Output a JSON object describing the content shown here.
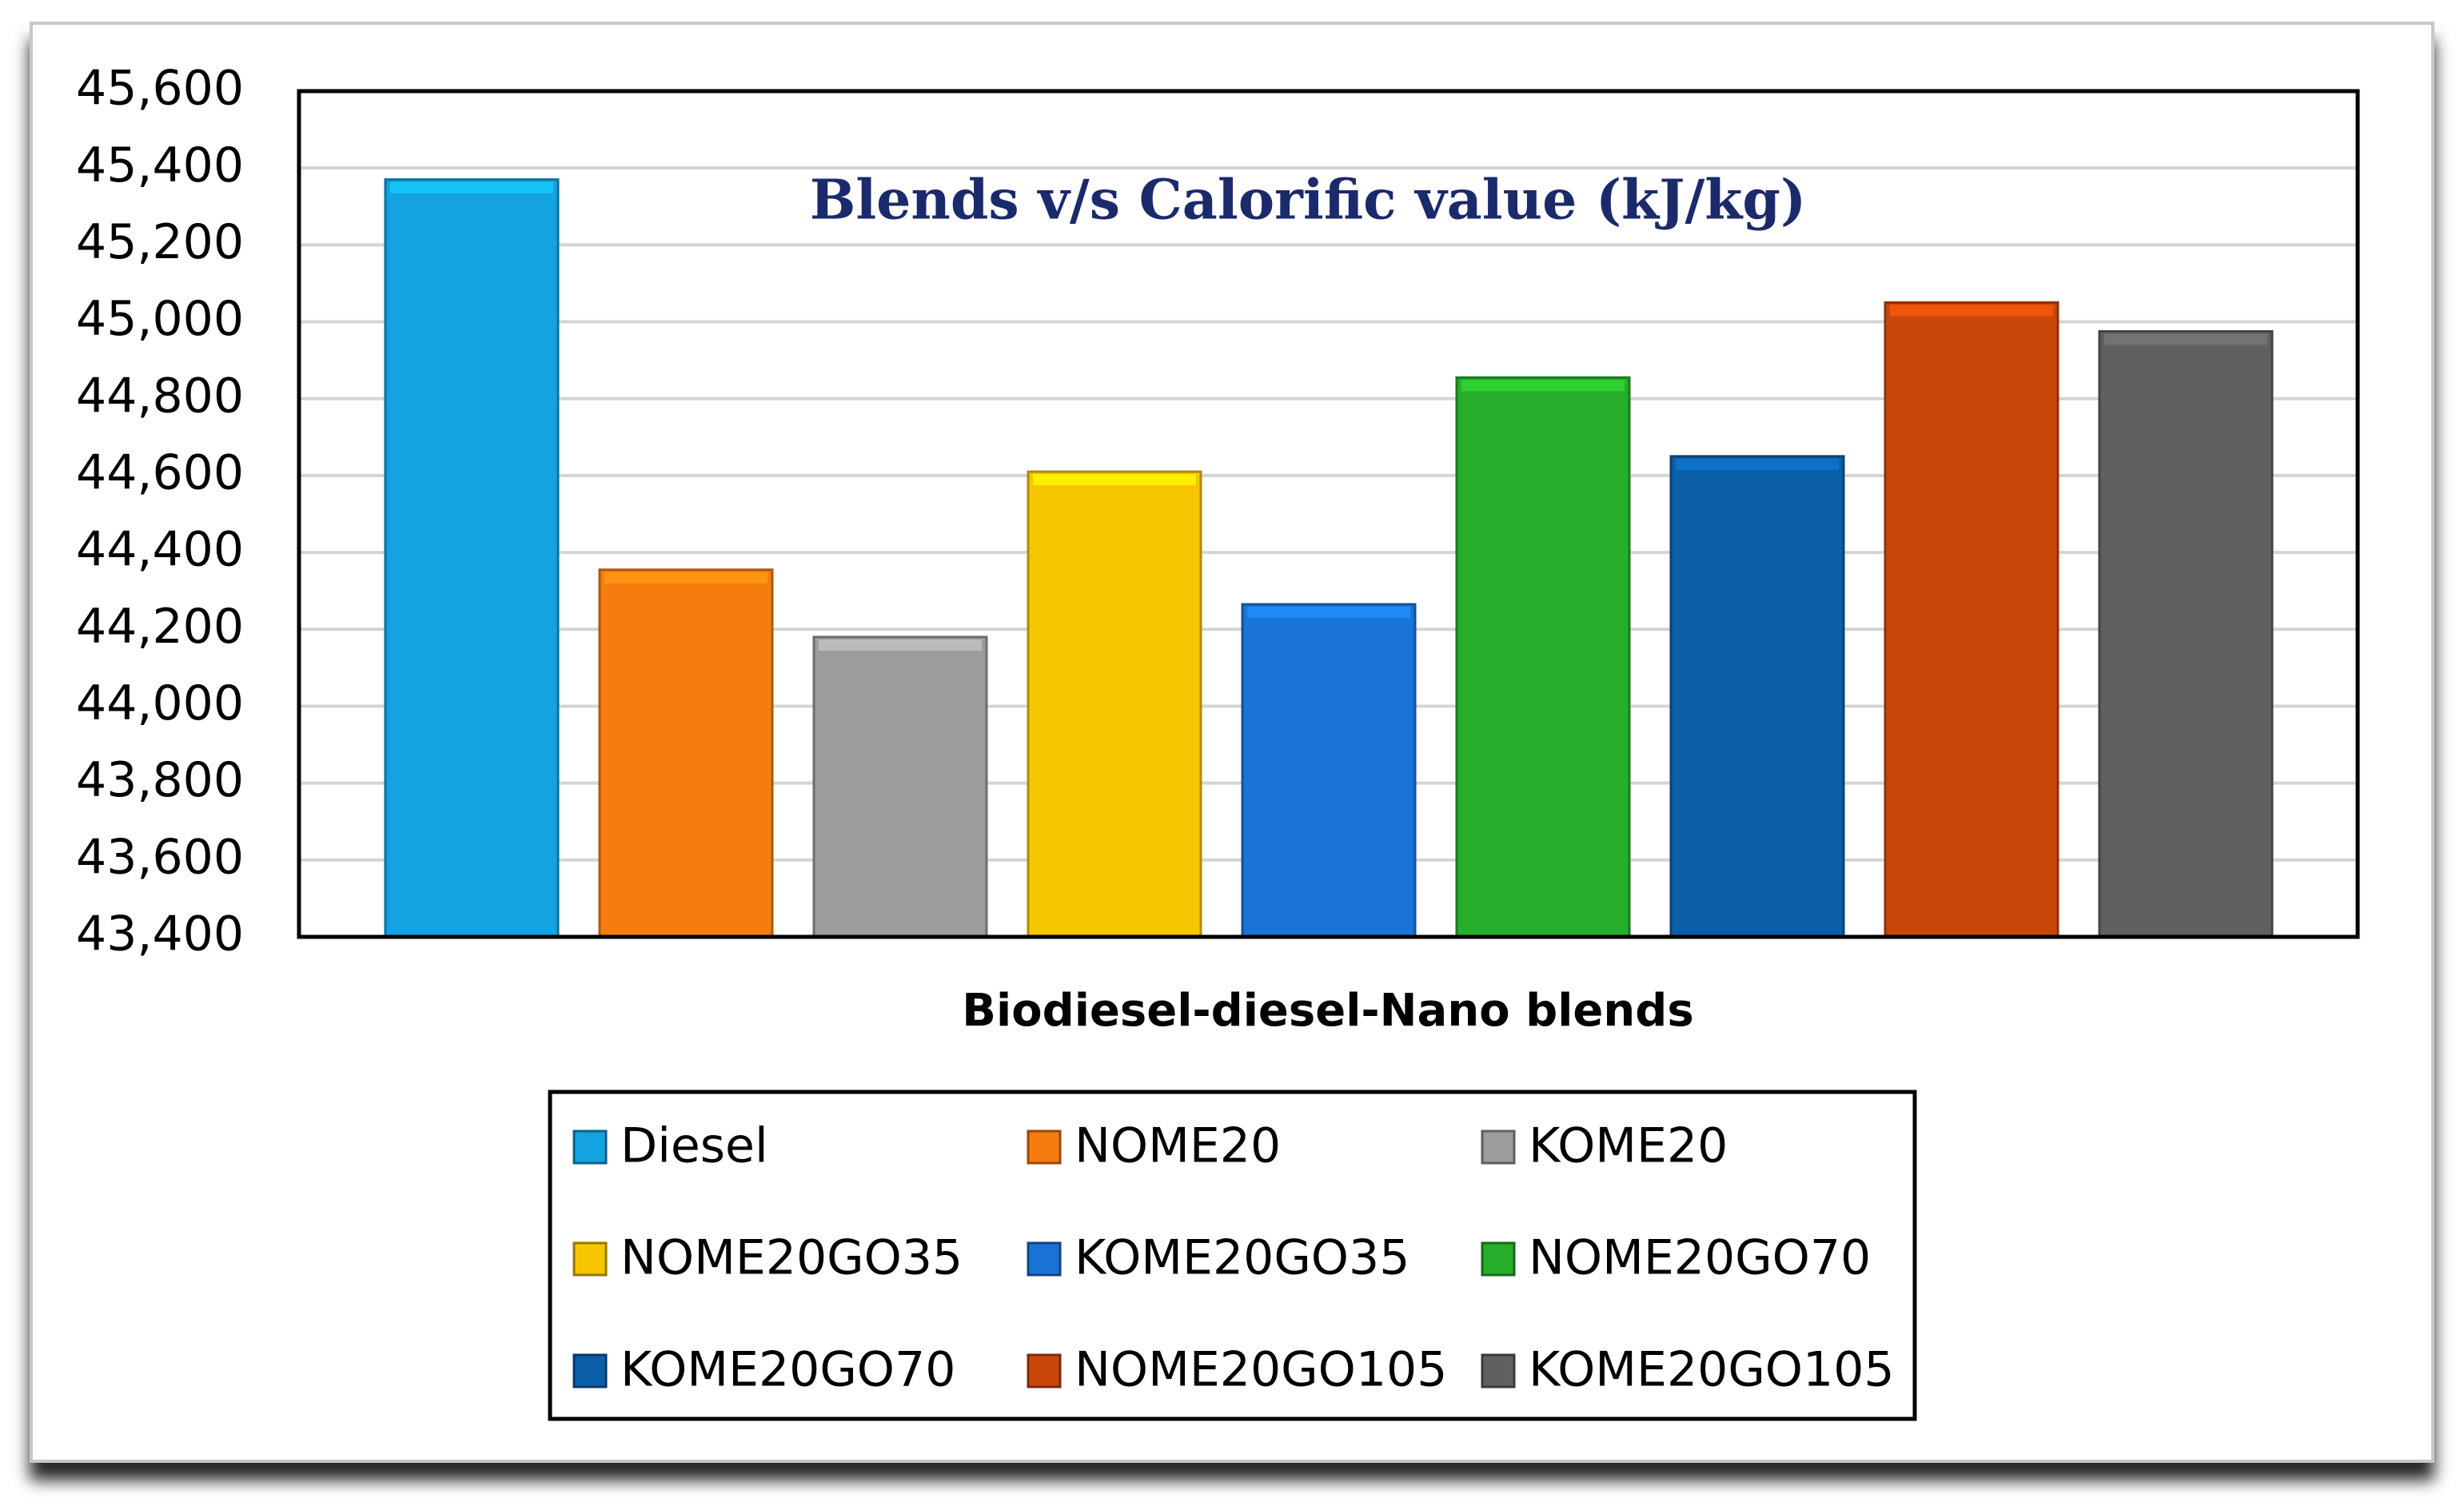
{
  "chart_data": {
    "type": "bar",
    "title": "Blends v/s Calorific value (kJ/kg)",
    "x_label": "Biodiesel-diesel-Nano blends",
    "categories": [
      null
    ],
    "series": [
      {
        "name": "Diesel",
        "color": "#12a3e0",
        "values": [
          45370
        ]
      },
      {
        "name": "NOME20",
        "color": "#f57c0f",
        "values": [
          44355
        ]
      },
      {
        "name": "KOME20",
        "color": "#9c9c9c",
        "values": [
          44180
        ]
      },
      {
        "name": "NOME20GO35",
        "color": "#f7c600",
        "values": [
          44610
        ]
      },
      {
        "name": "KOME20GO35",
        "color": "#1a73d6",
        "values": [
          44265
        ]
      },
      {
        "name": "NOME20GO70",
        "color": "#27ae2a",
        "values": [
          44855
        ]
      },
      {
        "name": "KOME20GO70",
        "color": "#0b5ea8",
        "values": [
          44650
        ]
      },
      {
        "name": "NOME20GO105",
        "color": "#c9470b",
        "values": [
          45050
        ]
      },
      {
        "name": "KOME20GO105",
        "color": "#606060",
        "values": [
          44975
        ]
      }
    ],
    "ylim": [
      43400,
      45600
    ],
    "yticks": [
      {
        "value": 43400,
        "label": "43,400"
      },
      {
        "value": 43600,
        "label": "43,600"
      },
      {
        "value": 43800,
        "label": "43,800"
      },
      {
        "value": 44000,
        "label": "44,000"
      },
      {
        "value": 44200,
        "label": "44,200"
      },
      {
        "value": 44400,
        "label": "44,400"
      },
      {
        "value": 44600,
        "label": "44,600"
      },
      {
        "value": 44800,
        "label": "44,800"
      },
      {
        "value": 45000,
        "label": "45,000"
      },
      {
        "value": 45200,
        "label": "45,200"
      },
      {
        "value": 45400,
        "label": "45,400"
      },
      {
        "value": 45600,
        "label": "45,600"
      }
    ],
    "grid": true
  }
}
